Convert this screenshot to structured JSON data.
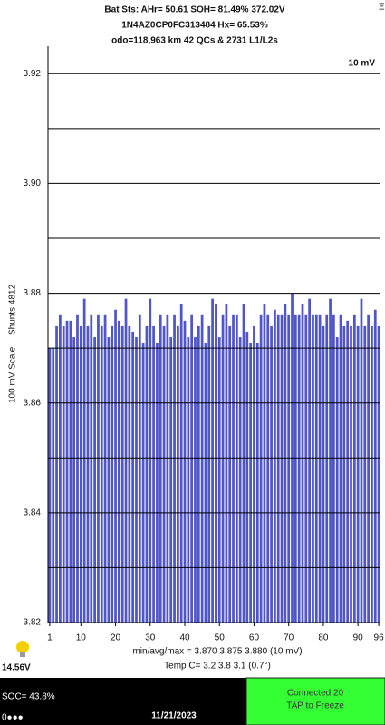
{
  "header": {
    "line1": "Bat Sts:  AHr= 50.61  SOH= 81.49%  372.02V",
    "line2": "1N4AZ0CP0FC313484  Hx= 65.53%",
    "line3": "odo=118,963 km 42 QCs & 2731 L1/L2s",
    "menu": "Ξ"
  },
  "chart_data": {
    "type": "bar",
    "scale_label": "10 mV",
    "ylabel_left": "100 mV Scale",
    "ylabel_right": "Shunts 4812",
    "color": "#5055c8",
    "x": [
      1,
      2,
      3,
      4,
      5,
      6,
      7,
      8,
      9,
      10,
      11,
      12,
      13,
      14,
      15,
      16,
      17,
      18,
      19,
      20,
      21,
      22,
      23,
      24,
      25,
      26,
      27,
      28,
      29,
      30,
      31,
      32,
      33,
      34,
      35,
      36,
      37,
      38,
      39,
      40,
      41,
      42,
      43,
      44,
      45,
      46,
      47,
      48,
      49,
      50,
      51,
      52,
      53,
      54,
      55,
      56,
      57,
      58,
      59,
      60,
      61,
      62,
      63,
      64,
      65,
      66,
      67,
      68,
      69,
      70,
      71,
      72,
      73,
      74,
      75,
      76,
      77,
      78,
      79,
      80,
      81,
      82,
      83,
      84,
      85,
      86,
      87,
      88,
      89,
      90,
      91,
      92,
      93,
      94,
      95,
      96
    ],
    "values": [
      3.87,
      3.87,
      3.874,
      3.876,
      3.874,
      3.875,
      3.875,
      3.872,
      3.876,
      3.874,
      3.879,
      3.874,
      3.876,
      3.872,
      3.876,
      3.874,
      3.876,
      3.872,
      3.874,
      3.877,
      3.875,
      3.874,
      3.879,
      3.874,
      3.873,
      3.872,
      3.876,
      3.871,
      3.874,
      3.879,
      3.874,
      3.871,
      3.876,
      3.874,
      3.876,
      3.872,
      3.876,
      3.874,
      3.878,
      3.875,
      3.872,
      3.876,
      3.872,
      3.874,
      3.876,
      3.871,
      3.874,
      3.879,
      3.878,
      3.872,
      3.876,
      3.878,
      3.874,
      3.876,
      3.876,
      3.872,
      3.878,
      3.873,
      3.871,
      3.874,
      3.871,
      3.876,
      3.878,
      3.876,
      3.874,
      3.877,
      3.876,
      3.876,
      3.878,
      3.876,
      3.88,
      3.876,
      3.876,
      3.878,
      3.876,
      3.879,
      3.876,
      3.876,
      3.876,
      3.874,
      3.876,
      3.879,
      3.876,
      3.872,
      3.876,
      3.874,
      3.875,
      3.874,
      3.876,
      3.874,
      3.879,
      3.874,
      3.876,
      3.874,
      3.877,
      3.874
    ],
    "xlim": [
      0.5,
      96.5
    ],
    "xticks": [
      1,
      10,
      20,
      30,
      40,
      50,
      60,
      70,
      80,
      90,
      96
    ],
    "ylim": [
      3.82,
      3.925
    ],
    "yticks": [
      3.82,
      3.84,
      3.86,
      3.88,
      {
        "value": 3.9,
        "label": "3.90"
      },
      3.92
    ],
    "minor_yticks": [
      3.83,
      3.85,
      3.87,
      3.89,
      3.91
    ],
    "grid": true,
    "stats": "min/avg/max = 3.870 3.875 3.880 (10 mV)",
    "temps": "Temp C= 3.2  3.8  3.1  (0.7°)"
  },
  "footer": {
    "voltage": "14.56V",
    "soc": "SOC= 43.8%",
    "dots": "0●●●",
    "date": "11/21/2023",
    "status": "Connected 20",
    "action": "TAP to Freeze"
  }
}
